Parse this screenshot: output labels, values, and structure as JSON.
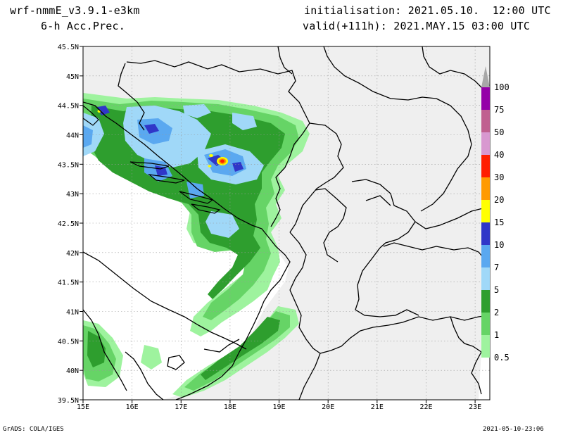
{
  "header": {
    "model": "wrf-nmmE_v3.9.1-e3km",
    "field": "6-h Acc.Prec.",
    "init": "initialisation: 2021.05.10.  12:00 UTC",
    "valid": "valid(+111h): 2021.MAY.15 03:00 UTC"
  },
  "footer": {
    "credit": "GrADS: COLA/IGES",
    "timestamp": "2021-05-10-23:06"
  },
  "axes": {
    "lat_labels": [
      "39.5N",
      "40N",
      "40.5N",
      "41N",
      "41.5N",
      "42N",
      "42.5N",
      "43N",
      "43.5N",
      "44N",
      "44.5N",
      "45N",
      "45.5N"
    ],
    "lon_labels": [
      "15E",
      "16E",
      "17E",
      "18E",
      "19E",
      "20E",
      "21E",
      "22E",
      "23E"
    ],
    "lat_range": [
      39.5,
      45.5
    ],
    "lon_range": [
      15,
      23.3
    ]
  },
  "colorbar": {
    "levels": [
      "0.5",
      "1",
      "2",
      "5",
      "7",
      "10",
      "15",
      "20",
      "30",
      "40",
      "50",
      "75",
      "100"
    ],
    "colors": [
      "#9ef39e",
      "#66d466",
      "#2e9e2e",
      "#a0d8f8",
      "#5aa8f0",
      "#3036c8",
      "#ffff00",
      "#ff9a00",
      "#ff1e00",
      "#d898d0",
      "#c06090",
      "#9400a8",
      "#a8a8a8"
    ]
  },
  "colors": {
    "land": "#efefef",
    "sea": "#ffffff"
  }
}
